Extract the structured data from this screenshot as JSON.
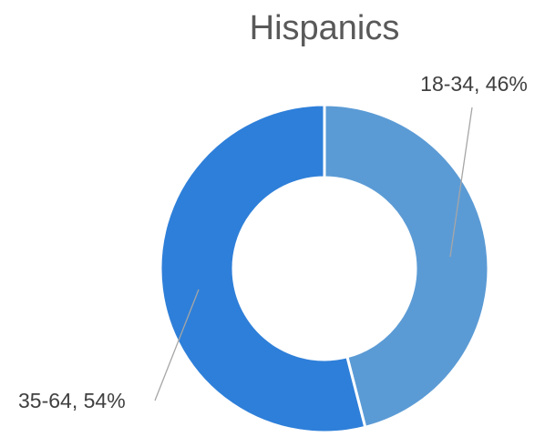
{
  "chart_data": {
    "type": "pie",
    "title": "Hispanics",
    "categories": [
      "18-34",
      "35-64"
    ],
    "values": [
      46,
      54
    ],
    "unit": "%",
    "labels": [
      "18-34, 46%",
      "35-64, 54%"
    ],
    "colors": [
      "#5b9bd5",
      "#2e7fd9"
    ],
    "hole": "donut",
    "legend": "none"
  }
}
